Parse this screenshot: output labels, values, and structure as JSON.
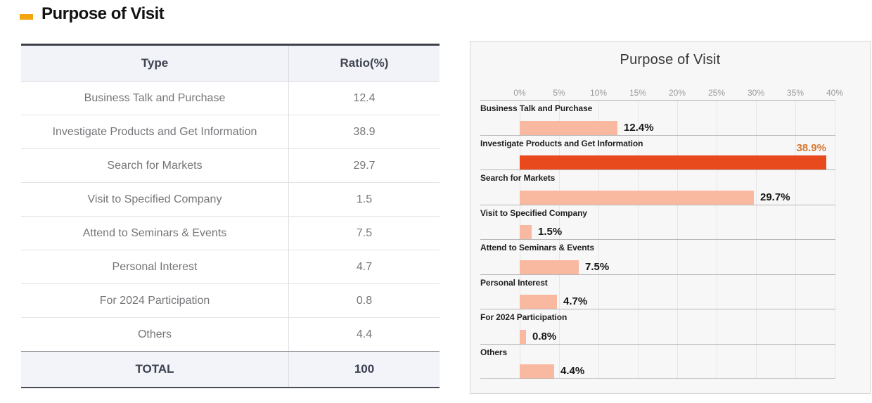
{
  "page": {
    "title": "Purpose of Visit",
    "accent_color": "#f2a50c"
  },
  "table": {
    "headers": [
      "Type",
      "Ratio(%)"
    ],
    "rows": [
      {
        "type": "Business Talk and Purchase",
        "ratio": "12.4"
      },
      {
        "type": "Investigate Products and Get Information",
        "ratio": "38.9"
      },
      {
        "type": "Search for Markets",
        "ratio": "29.7"
      },
      {
        "type": "Visit to Specified Company",
        "ratio": "1.5"
      },
      {
        "type": "Attend to Seminars & Events",
        "ratio": "7.5"
      },
      {
        "type": "Personal Interest",
        "ratio": "4.7"
      },
      {
        "type": "For 2024 Participation",
        "ratio": "0.8"
      },
      {
        "type": "Others",
        "ratio": "4.4"
      }
    ],
    "total": {
      "label": "TOTAL",
      "value": "100"
    }
  },
  "chart_data": {
    "type": "bar",
    "orientation": "horizontal",
    "title": "Purpose of Visit",
    "categories": [
      "Business Talk and Purchase",
      "Investigate Products and Get Information",
      "Search for Markets",
      "Visit to Specified Company",
      "Attend to Seminars & Events",
      "Personal Interest",
      "For 2024 Participation",
      "Others"
    ],
    "values": [
      12.4,
      38.9,
      29.7,
      1.5,
      7.5,
      4.7,
      0.8,
      4.4
    ],
    "value_labels": [
      "12.4%",
      "38.9%",
      "29.7%",
      "1.5%",
      "7.5%",
      "4.7%",
      "0.8%",
      "4.4%"
    ],
    "xlim": [
      0,
      40
    ],
    "x_ticks": [
      "0%",
      "5%",
      "10%",
      "15%",
      "20%",
      "25%",
      "30%",
      "35%",
      "40%"
    ],
    "grid": true,
    "legend": false,
    "highlight_index": 1,
    "bar_color": "#f9b9a1",
    "highlight_color": "#e8491d",
    "highlight_value_color": "#d8782f",
    "panel_background": "#f7f7f7"
  }
}
